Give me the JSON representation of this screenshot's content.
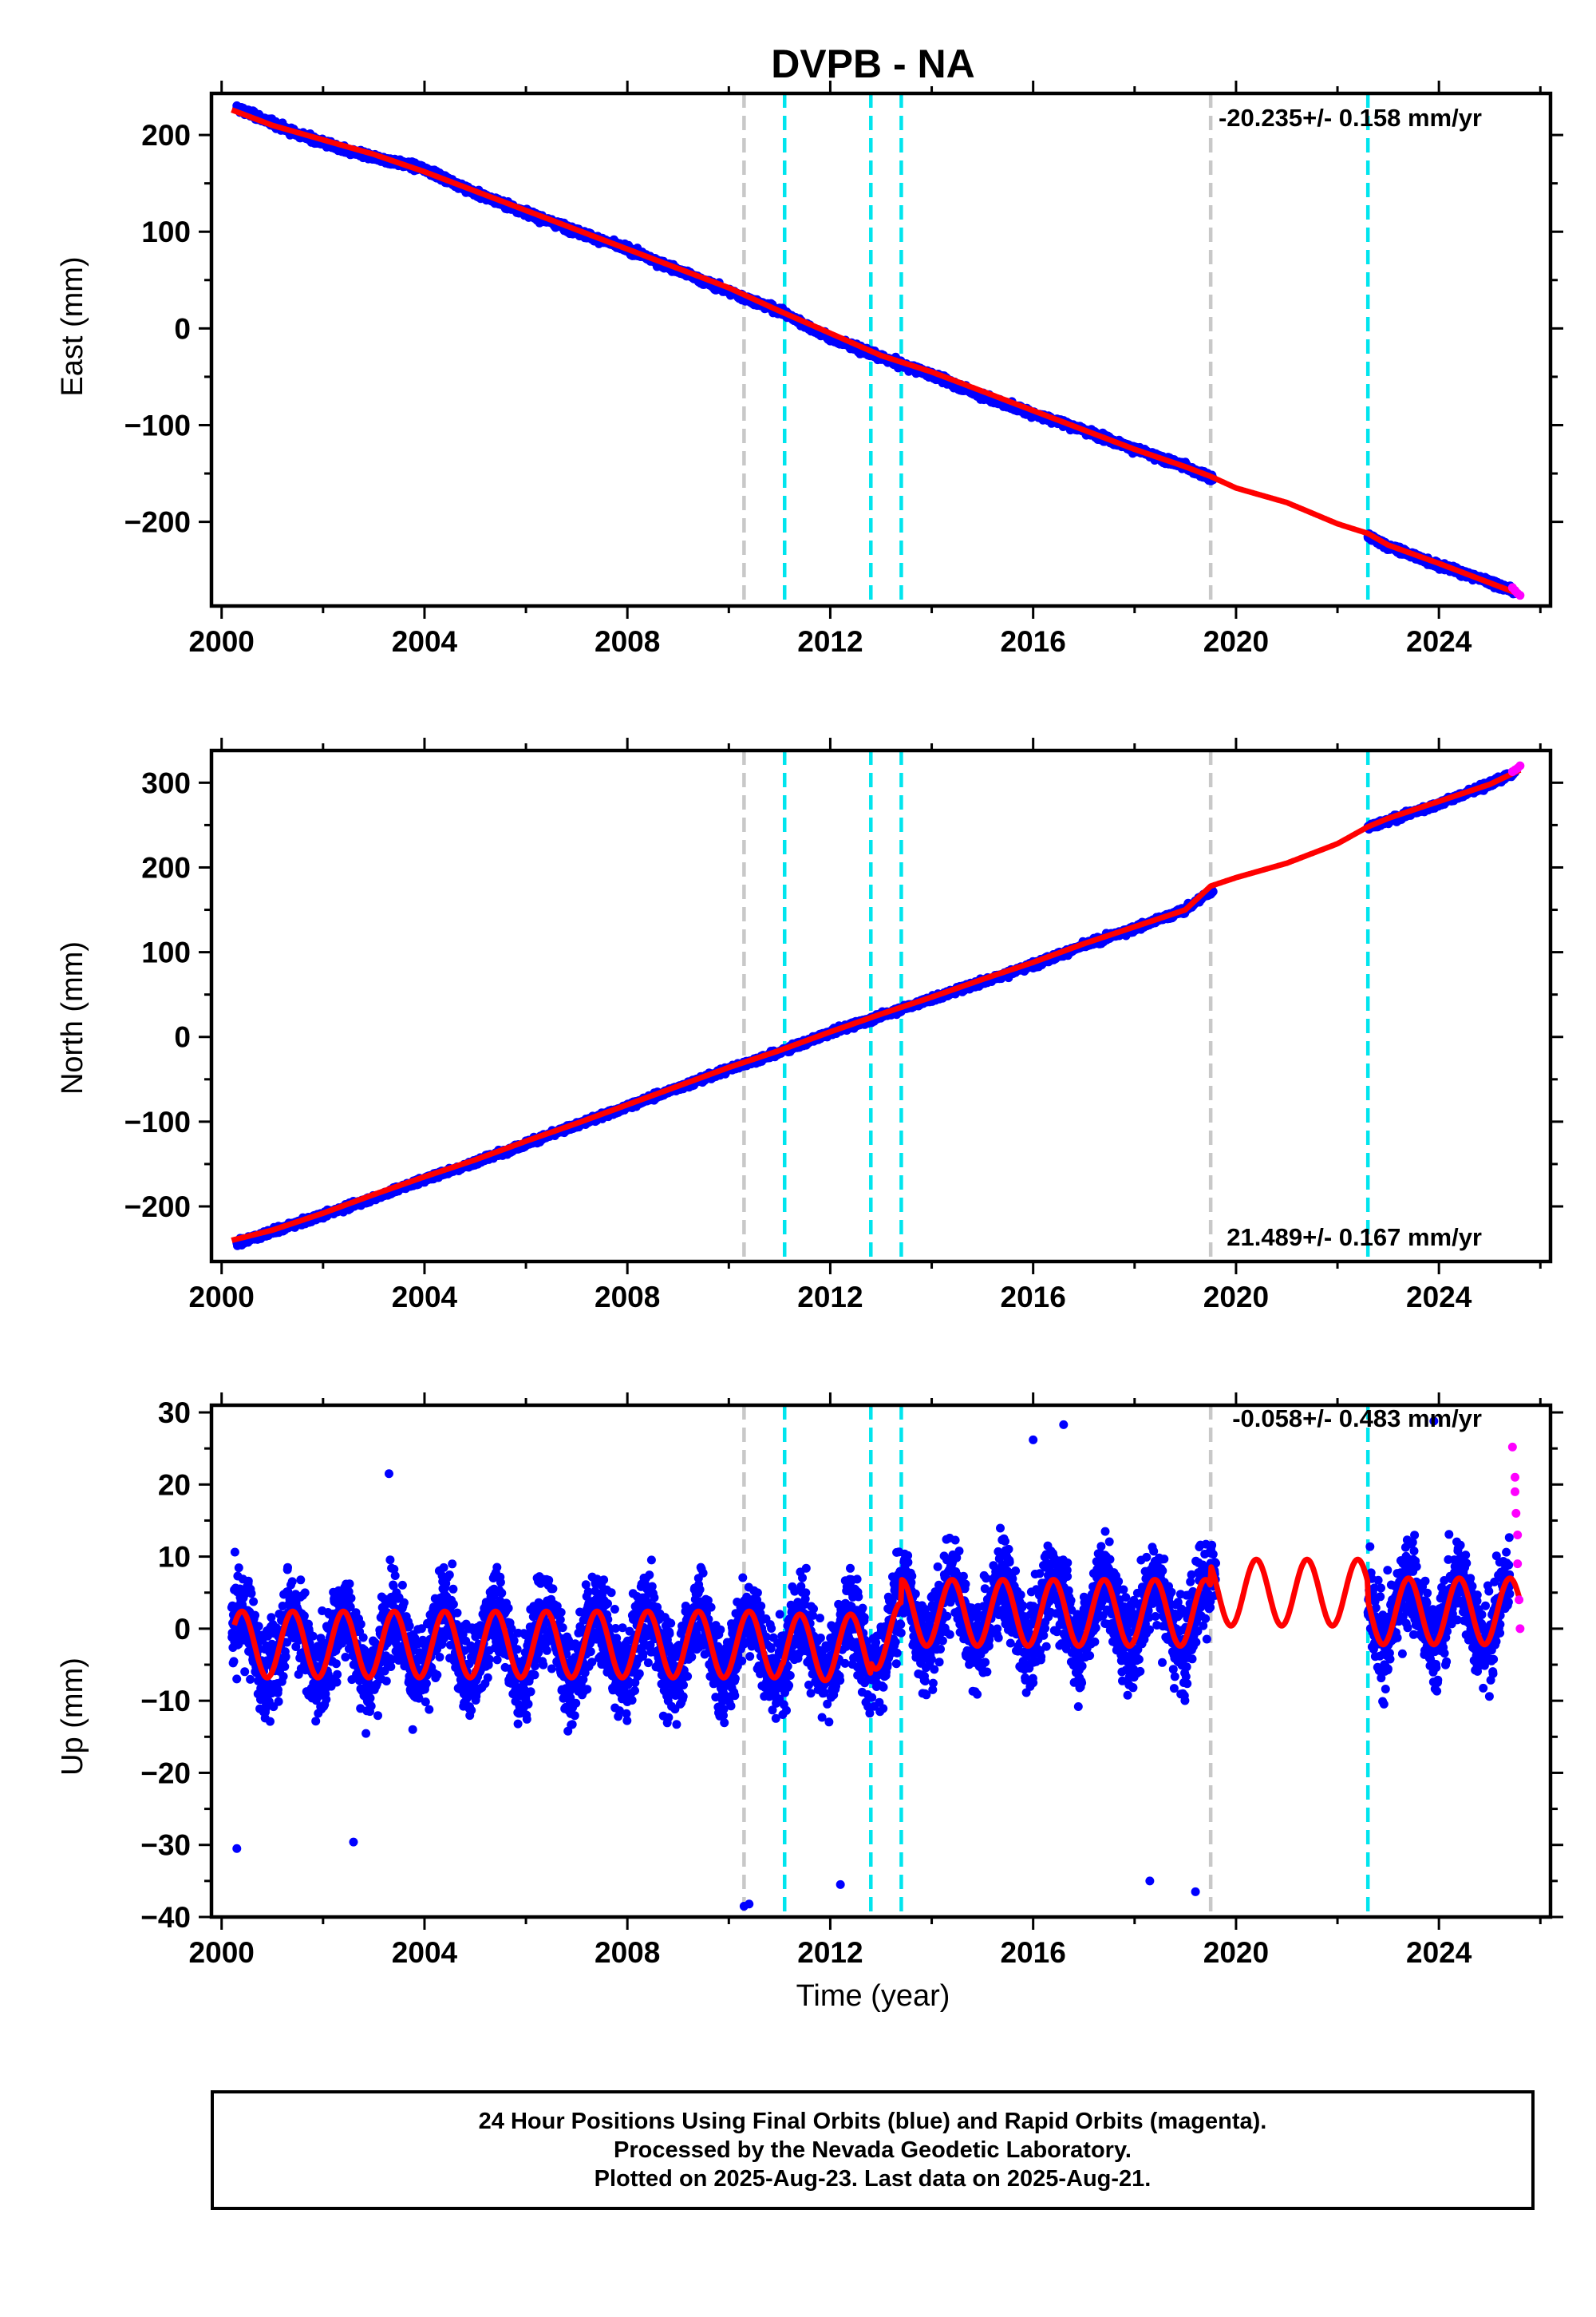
{
  "title": "DVPB - NA",
  "xlabel": "Time (year)",
  "footer": {
    "line1": "24 Hour Positions Using Final Orbits (blue) and Rapid Orbits (magenta).",
    "line2": "Processed by the Nevada Geodetic Laboratory.",
    "line3": "Plotted on 2025-Aug-23. Last data on 2025-Aug-21."
  },
  "colors": {
    "final_orbits": "#0000ff",
    "rapid_orbits": "#ff00ff",
    "model": "#ff0000",
    "equipment_change": "#c8c8c8",
    "earthquake": "#00e5ee"
  },
  "chart_data": [
    {
      "type": "scatter",
      "ylabel": "East (mm)",
      "rate_label": "-20.235+/- 0.158 mm/yr",
      "rate_position": "top-right",
      "xlim": [
        1999.8,
        2026.2
      ],
      "ylim": [
        -287,
        243
      ],
      "x_ticks": [
        "2000",
        "2004",
        "2008",
        "2012",
        "2016",
        "2020",
        "2024"
      ],
      "y_ticks": [
        "200",
        "100",
        "0",
        "−100",
        "−200"
      ],
      "y_tick_values": [
        200,
        100,
        0,
        -100,
        -200
      ],
      "series": [
        {
          "name": "Final Orbits (blue)",
          "x": [
            2000.3,
            2001.5,
            2002.5,
            2004.0,
            2005.0,
            2006.0,
            2007.0,
            2008.0,
            2009.0,
            2010.0,
            2011.0,
            2012.0,
            2013.0,
            2014.0,
            2015.0,
            2016.0,
            2017.0,
            2018.0,
            2019.0,
            2019.5,
            2022.6,
            2023.0,
            2024.0,
            2025.0,
            2025.5
          ],
          "y": [
            228,
            201,
            183,
            165,
            140,
            120,
            100,
            82,
            60,
            38,
            18,
            -10,
            -30,
            -48,
            -70,
            -88,
            -105,
            -125,
            -143,
            -155,
            -215,
            -225,
            -245,
            -262,
            -272
          ]
        },
        {
          "name": "Rapid Orbits (magenta)",
          "x": [
            2025.45,
            2025.5,
            2025.55,
            2025.6
          ],
          "y": [
            -268,
            -271,
            -274,
            -276
          ]
        },
        {
          "name": "Model",
          "x": [
            2000.2,
            2001.0,
            2002.0,
            2003.0,
            2004.0,
            2005.0,
            2006.0,
            2007.0,
            2008.0,
            2009.0,
            2010.0,
            2011.0,
            2012.0,
            2013.0,
            2014.0,
            2015.0,
            2016.0,
            2017.0,
            2018.0,
            2019.0,
            2019.5,
            2020.0,
            2021.0,
            2022.0,
            2022.6,
            2023.0,
            2024.0,
            2025.0,
            2025.6
          ],
          "y": [
            226,
            210,
            195,
            180,
            162,
            142,
            122,
            102,
            82,
            62,
            42,
            18,
            -5,
            -28,
            -45,
            -65,
            -85,
            -105,
            -125,
            -143,
            -153,
            -165,
            -180,
            -202,
            -212,
            -224,
            -243,
            -263,
            -275
          ]
        }
      ]
    },
    {
      "type": "scatter",
      "ylabel": "North (mm)",
      "rate_label": "21.489+/- 0.167 mm/yr",
      "rate_position": "bottom-right",
      "xlim": [
        1999.8,
        2026.2
      ],
      "ylim": [
        -265,
        338
      ],
      "x_ticks": [
        "2000",
        "2004",
        "2008",
        "2012",
        "2016",
        "2020",
        "2024"
      ],
      "y_ticks": [
        "300",
        "200",
        "100",
        "0",
        "−100",
        "−200"
      ],
      "y_tick_values": [
        300,
        200,
        100,
        0,
        -100,
        -200
      ],
      "series": [
        {
          "name": "Final Orbits (blue)",
          "x": [
            2000.3,
            2001.0,
            2002.0,
            2003.0,
            2004.0,
            2005.0,
            2006.0,
            2007.0,
            2008.0,
            2009.0,
            2010.0,
            2011.0,
            2012.0,
            2013.0,
            2014.0,
            2015.0,
            2016.0,
            2017.0,
            2018.0,
            2019.0,
            2019.5,
            2022.6,
            2023.0,
            2024.0,
            2025.0,
            2025.5
          ],
          "y": [
            -243,
            -230,
            -210,
            -190,
            -168,
            -148,
            -126,
            -104,
            -82,
            -60,
            -38,
            -18,
            5,
            25,
            45,
            65,
            85,
            108,
            128,
            150,
            172,
            248,
            255,
            275,
            298,
            312
          ]
        },
        {
          "name": "Rapid Orbits (magenta)",
          "x": [
            2025.45,
            2025.5,
            2025.55,
            2025.6
          ],
          "y": [
            313,
            315,
            317,
            320
          ]
        },
        {
          "name": "Model",
          "x": [
            2000.2,
            2001.0,
            2002.0,
            2003.0,
            2004.0,
            2005.0,
            2006.0,
            2007.0,
            2008.0,
            2009.0,
            2010.0,
            2011.0,
            2012.0,
            2013.0,
            2014.0,
            2015.0,
            2016.0,
            2017.0,
            2018.0,
            2019.0,
            2019.5,
            2020.0,
            2021.0,
            2022.0,
            2022.6,
            2023.0,
            2024.0,
            2025.0,
            2025.6
          ],
          "y": [
            -240,
            -228,
            -208,
            -186,
            -165,
            -145,
            -123,
            -102,
            -80,
            -58,
            -36,
            -16,
            6,
            27,
            47,
            68,
            88,
            110,
            130,
            150,
            178,
            188,
            205,
            228,
            248,
            258,
            278,
            298,
            315
          ]
        }
      ]
    },
    {
      "type": "scatter",
      "ylabel": "Up (mm)",
      "rate_label": "-0.058+/- 0.483 mm/yr",
      "rate_position": "top-right",
      "xlim": [
        1999.8,
        2026.2
      ],
      "ylim": [
        -40,
        31
      ],
      "x_ticks": [
        "2000",
        "2004",
        "2008",
        "2012",
        "2016",
        "2020",
        "2024"
      ],
      "y_ticks": [
        "30",
        "20",
        "10",
        "0",
        "−10",
        "−20",
        "−30",
        "−40"
      ],
      "y_tick_values": [
        30,
        20,
        10,
        0,
        -10,
        -20,
        -30,
        -40
      ],
      "series": [
        {
          "name": "Final Orbits (blue)",
          "x_range": [
            2000.2,
            2025.4
          ],
          "gap": [
            2019.6,
            2022.6
          ],
          "noise_sd_mm": 6,
          "outliers": [
            [
              2000.3,
              -30.5
            ],
            [
              2002.6,
              -29.6
            ],
            [
              2003.3,
              21.5
            ],
            [
              2010.3,
              -38.5
            ],
            [
              2010.4,
              -38.2
            ],
            [
              2012.2,
              -35.5
            ],
            [
              2016.0,
              26.2
            ],
            [
              2016.6,
              28.3
            ],
            [
              2018.3,
              -35.0
            ],
            [
              2019.2,
              -36.5
            ],
            [
              2023.9,
              28.8
            ]
          ]
        },
        {
          "name": "Rapid Orbits (magenta)",
          "x": [
            2025.45,
            2025.5,
            2025.5,
            2025.52,
            2025.55,
            2025.55,
            2025.58,
            2025.6
          ],
          "y": [
            25.2,
            21,
            19,
            16,
            13,
            9,
            4,
            0
          ]
        },
        {
          "name": "Model",
          "annual_amplitude_mm": 4.6,
          "offsets": [
            {
              "from": 2000.2,
              "to": 2011.05,
              "mean": -2.2
            },
            {
              "from": 2011.05,
              "to": 2012.8,
              "mean": -2.6
            },
            {
              "from": 2012.8,
              "to": 2013.4,
              "mean": -1.0
            },
            {
              "from": 2013.4,
              "to": 2019.5,
              "mean": 2.2
            },
            {
              "from": 2019.5,
              "to": 2022.6,
              "mean": 5.0
            },
            {
              "from": 2022.6,
              "to": 2025.6,
              "mean": 2.4
            }
          ]
        }
      ]
    }
  ],
  "event_lines": {
    "equipment_change": [
      2010.3,
      2019.5
    ],
    "earthquake": [
      2011.1,
      2012.8,
      2013.4,
      2022.6
    ]
  }
}
